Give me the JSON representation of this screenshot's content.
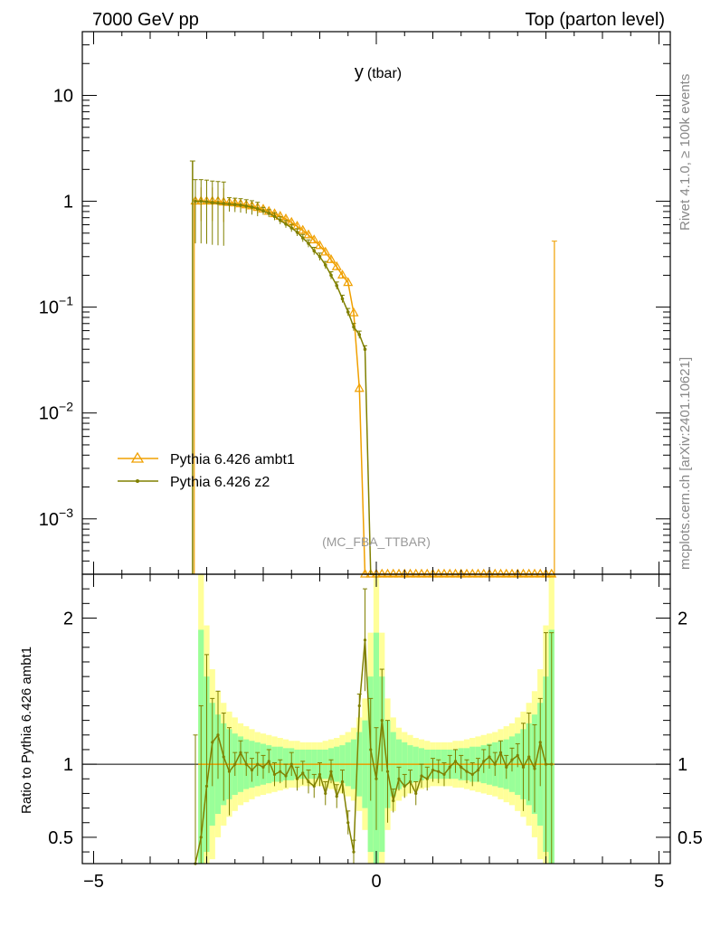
{
  "header": {
    "left": "7000 GeV pp",
    "right": "Top (parton level)"
  },
  "side": {
    "rivet": "Rivet 4.1.0, ≥ 100k events",
    "mcplots": "mcplots.cern.ch [arXiv:2401.10621]"
  },
  "chart_data": {
    "type": "line",
    "title_main": "y",
    "title_sub": "(tbar)",
    "analysis_label": "(MC_FBA_TTBAR)",
    "xlim": [
      -5.2,
      5.2
    ],
    "x_ticks": [
      "−5",
      "0",
      "5"
    ],
    "top": {
      "yscale": "log",
      "ylim": [
        0.0003,
        40
      ],
      "y_ticks": [
        {
          "value": 10,
          "base": "10",
          "exp": ""
        },
        {
          "value": 1,
          "base": "1",
          "exp": ""
        },
        {
          "value": 0.1,
          "base": "10",
          "exp": "−1"
        },
        {
          "value": 0.01,
          "base": "10",
          "exp": "−2"
        },
        {
          "value": 0.001,
          "base": "10",
          "exp": "−3"
        }
      ]
    },
    "ratio": {
      "ylabel": "Ratio to Pythia 6.426 ambt1",
      "ylim": [
        0.32,
        2.3
      ],
      "y_ticks": [
        "0.5",
        "1",
        "2"
      ],
      "band_x": [
        -3.1,
        -3.0,
        -2.9,
        -2.8,
        -2.7,
        -2.6,
        -2.5,
        -2.4,
        -2.3,
        -2.2,
        -2.1,
        -2.0,
        -1.9,
        -1.8,
        -1.7,
        -1.6,
        -1.5,
        -1.4,
        -1.3,
        -1.2,
        -1.1,
        -1.0,
        -0.9,
        -0.8,
        -0.7,
        -0.6,
        -0.5,
        -0.4,
        -0.3,
        -0.2,
        -0.1,
        0.0,
        0.1,
        0.2,
        0.3,
        0.4,
        0.5,
        0.6,
        0.7,
        0.8,
        0.9,
        1.0,
        1.1,
        1.2,
        1.3,
        1.4,
        1.5,
        1.6,
        1.7,
        1.8,
        1.9,
        2.0,
        2.1,
        2.2,
        2.3,
        2.4,
        2.5,
        2.6,
        2.7,
        2.8,
        2.9,
        3.0,
        3.1
      ],
      "band_green": [
        0.92,
        0.6,
        0.42,
        0.34,
        0.28,
        0.24,
        0.21,
        0.19,
        0.17,
        0.16,
        0.15,
        0.14,
        0.13,
        0.12,
        0.12,
        0.11,
        0.11,
        0.1,
        0.1,
        0.1,
        0.1,
        0.1,
        0.1,
        0.11,
        0.12,
        0.13,
        0.15,
        0.17,
        0.22,
        0.3,
        0.6,
        0.9,
        0.6,
        0.3,
        0.22,
        0.17,
        0.15,
        0.13,
        0.12,
        0.11,
        0.1,
        0.1,
        0.1,
        0.1,
        0.1,
        0.1,
        0.11,
        0.11,
        0.12,
        0.12,
        0.13,
        0.14,
        0.15,
        0.16,
        0.17,
        0.19,
        0.21,
        0.24,
        0.28,
        0.34,
        0.42,
        0.6,
        0.92
      ],
      "band_yellow": [
        1.4,
        0.95,
        0.65,
        0.5,
        0.42,
        0.36,
        0.32,
        0.28,
        0.26,
        0.24,
        0.22,
        0.21,
        0.2,
        0.19,
        0.18,
        0.17,
        0.16,
        0.16,
        0.15,
        0.15,
        0.15,
        0.15,
        0.16,
        0.17,
        0.18,
        0.2,
        0.22,
        0.25,
        0.32,
        0.45,
        0.9,
        1.4,
        0.9,
        0.45,
        0.32,
        0.25,
        0.22,
        0.2,
        0.18,
        0.17,
        0.16,
        0.15,
        0.15,
        0.15,
        0.15,
        0.16,
        0.16,
        0.17,
        0.18,
        0.19,
        0.2,
        0.21,
        0.22,
        0.24,
        0.26,
        0.28,
        0.32,
        0.36,
        0.42,
        0.5,
        0.65,
        0.95,
        1.4
      ]
    },
    "series": [
      {
        "name": "Pythia 6.426 ambt1",
        "color": "#f0a000",
        "marker": "triangle",
        "x": [
          -3.2,
          -3.1,
          -3.0,
          -2.9,
          -2.8,
          -2.7,
          -2.6,
          -2.5,
          -2.4,
          -2.3,
          -2.2,
          -2.1,
          -2.0,
          -1.9,
          -1.8,
          -1.7,
          -1.6,
          -1.5,
          -1.4,
          -1.3,
          -1.2,
          -1.1,
          -1.0,
          -0.9,
          -0.8,
          -0.7,
          -0.6,
          -0.5,
          -0.4,
          -0.3,
          -0.2,
          -0.1,
          0.0,
          0.1,
          0.2,
          0.3,
          0.4,
          0.5,
          0.6,
          0.7,
          0.8,
          0.9,
          1.0,
          1.1,
          1.2,
          1.3,
          1.4,
          1.5,
          1.6,
          1.7,
          1.8,
          1.9,
          2.0,
          2.1,
          2.2,
          2.3,
          2.4,
          2.5,
          2.6,
          2.7,
          2.8,
          2.9,
          3.0,
          3.1
        ],
        "y": [
          1.0,
          1.0,
          1.0,
          1.0,
          1.0,
          0.98,
          0.97,
          0.96,
          0.94,
          0.92,
          0.9,
          0.87,
          0.84,
          0.8,
          0.76,
          0.72,
          0.68,
          0.63,
          0.58,
          0.53,
          0.48,
          0.43,
          0.38,
          0.33,
          0.28,
          0.24,
          0.2,
          0.17,
          0.088,
          0.017,
          0.0003,
          0.0003,
          0.0003,
          0.0003,
          0.0003,
          0.0003,
          0.0003,
          0.0003,
          0.0003,
          0.0003,
          0.0003,
          0.0003,
          0.0003,
          0.0003,
          0.0003,
          0.0003,
          0.0003,
          0.0003,
          0.0003,
          0.0003,
          0.0003,
          0.0003,
          0.0003,
          0.0003,
          0.0003,
          0.0003,
          0.0003,
          0.0003,
          0.0003,
          0.0003,
          0.0003,
          0.0003,
          0.0003,
          0.0003
        ],
        "ratio": [
          1,
          1,
          1,
          1,
          1,
          1,
          1,
          1,
          1,
          1,
          1,
          1,
          1,
          1,
          1,
          1,
          1,
          1,
          1,
          1,
          1,
          1,
          1,
          1,
          1,
          1,
          1,
          1,
          1,
          1,
          1,
          1,
          1,
          1,
          1,
          1,
          1,
          1,
          1,
          1,
          1,
          1,
          1,
          1,
          1,
          1,
          1,
          1,
          1,
          1,
          1,
          1,
          1,
          1,
          1,
          1,
          1,
          1,
          1,
          1,
          1,
          1,
          1,
          1
        ],
        "xerr_end": 3.15,
        "lone_err": {
          "x": 3.15,
          "hi": 0.42
        }
      },
      {
        "name": "Pythia 6.426 z2",
        "color": "#808000",
        "marker": "dot",
        "x": [
          -3.2,
          -3.1,
          -3.0,
          -2.9,
          -2.8,
          -2.7,
          -2.6,
          -2.5,
          -2.4,
          -2.3,
          -2.2,
          -2.1,
          -2.0,
          -1.9,
          -1.8,
          -1.7,
          -1.6,
          -1.5,
          -1.4,
          -1.3,
          -1.2,
          -1.1,
          -1.0,
          -0.9,
          -0.8,
          -0.7,
          -0.6,
          -0.5,
          -0.4,
          -0.3,
          -0.2,
          -0.1,
          0.0
        ],
        "y": [
          1.0,
          1.0,
          0.99,
          0.97,
          0.96,
          0.95,
          0.94,
          0.93,
          0.92,
          0.9,
          0.88,
          0.85,
          0.81,
          0.77,
          0.72,
          0.66,
          0.61,
          0.56,
          0.51,
          0.45,
          0.4,
          0.34,
          0.3,
          0.25,
          0.2,
          0.16,
          0.12,
          0.09,
          0.065,
          0.055,
          0.04,
          0.0003,
          0.0003
        ],
        "ratio": [
          0.3,
          0.5,
          0.85,
          1.15,
          1.2,
          1.05,
          0.95,
          1.0,
          1.08,
          1.0,
          0.96,
          1.0,
          0.98,
          1.02,
          0.93,
          0.95,
          0.92,
          1.0,
          0.9,
          0.94,
          0.88,
          0.85,
          0.93,
          0.8,
          0.95,
          0.78,
          0.88,
          0.6,
          0.4,
          1.4,
          1.85,
          1.1,
          0.9
        ]
      }
    ],
    "ratio_z2_right": {
      "x": [
        0.1,
        0.2,
        0.3,
        0.4,
        0.5,
        0.6,
        0.7,
        0.8,
        0.9,
        1.0,
        1.1,
        1.2,
        1.3,
        1.4,
        1.5,
        1.6,
        1.7,
        1.8,
        1.9,
        2.0,
        2.1,
        2.2,
        2.3,
        2.4,
        2.5,
        2.6,
        2.7,
        2.8,
        2.9,
        3.0,
        3.1
      ],
      "y": [
        1.3,
        0.95,
        0.75,
        0.9,
        0.85,
        0.88,
        0.8,
        0.92,
        0.9,
        0.96,
        0.95,
        0.93,
        0.98,
        1.02,
        0.98,
        0.95,
        0.93,
        0.96,
        1.02,
        1.05,
        1.0,
        1.08,
        0.98,
        1.03,
        1.06,
        0.98,
        1.05,
        0.97,
        1.15,
        1.0,
        1.0
      ]
    }
  }
}
